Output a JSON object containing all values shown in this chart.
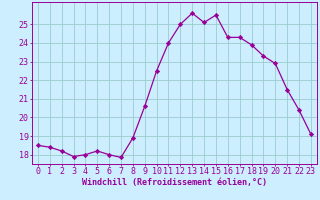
{
  "x": [
    0,
    1,
    2,
    3,
    4,
    5,
    6,
    7,
    8,
    9,
    10,
    11,
    12,
    13,
    14,
    15,
    16,
    17,
    18,
    19,
    20,
    21,
    22,
    23
  ],
  "y": [
    18.5,
    18.4,
    18.2,
    17.9,
    18.0,
    18.2,
    18.0,
    17.85,
    18.9,
    20.6,
    22.5,
    24.0,
    25.0,
    25.6,
    25.1,
    25.5,
    24.3,
    24.3,
    23.9,
    23.3,
    22.9,
    21.5,
    20.4,
    19.1
  ],
  "line_color": "#990099",
  "marker": "D",
  "marker_size": 2.2,
  "bg_color": "#cceeff",
  "grid_color": "#99cccc",
  "xlabel": "Windchill (Refroidissement éolien,°C)",
  "xlabel_fontsize": 6.0,
  "tick_fontsize": 6.0,
  "ylim": [
    17.5,
    26.2
  ],
  "yticks": [
    18,
    19,
    20,
    21,
    22,
    23,
    24,
    25
  ],
  "xticks": [
    0,
    1,
    2,
    3,
    4,
    5,
    6,
    7,
    8,
    9,
    10,
    11,
    12,
    13,
    14,
    15,
    16,
    17,
    18,
    19,
    20,
    21,
    22,
    23
  ]
}
